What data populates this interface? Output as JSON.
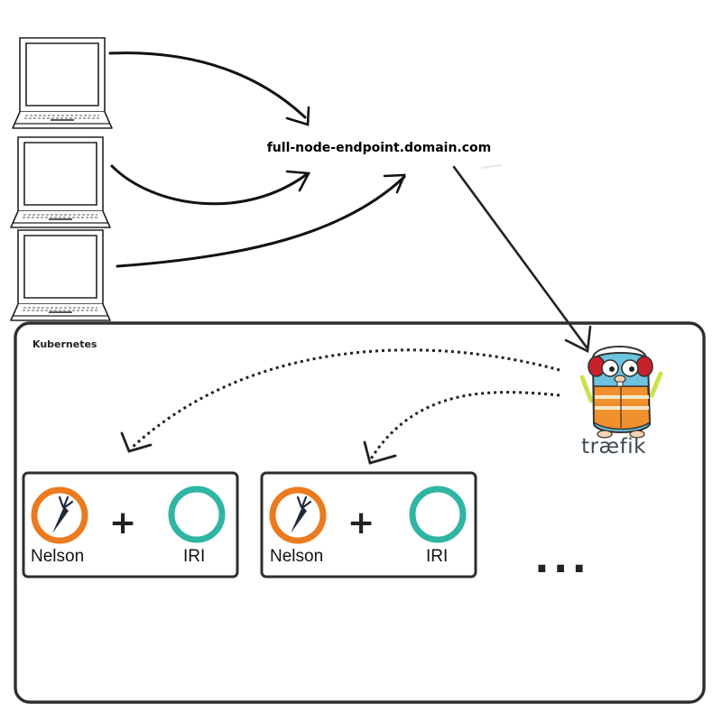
{
  "endpoint": {
    "label": "full-node-endpoint.domain.com"
  },
  "cluster": {
    "label": "Kubernetes"
  },
  "proxy": {
    "name": "træfik",
    "mascot": "traefik-gopher"
  },
  "clients": [
    {
      "icon": "laptop-icon"
    },
    {
      "icon": "laptop-icon"
    },
    {
      "icon": "laptop-icon"
    }
  ],
  "pods": [
    {
      "nelson_label": "Nelson",
      "iri_label": "IRI",
      "joiner": "+"
    },
    {
      "nelson_label": "Nelson",
      "iri_label": "IRI",
      "joiner": "+"
    }
  ],
  "more_indicator": "...",
  "colors": {
    "nelson_orange": "#ec7a1e",
    "iri_teal": "#2fb5a3",
    "line": "#222222",
    "gopher_blue": "#6cc4e0",
    "vest_orange": "#f0912d"
  }
}
